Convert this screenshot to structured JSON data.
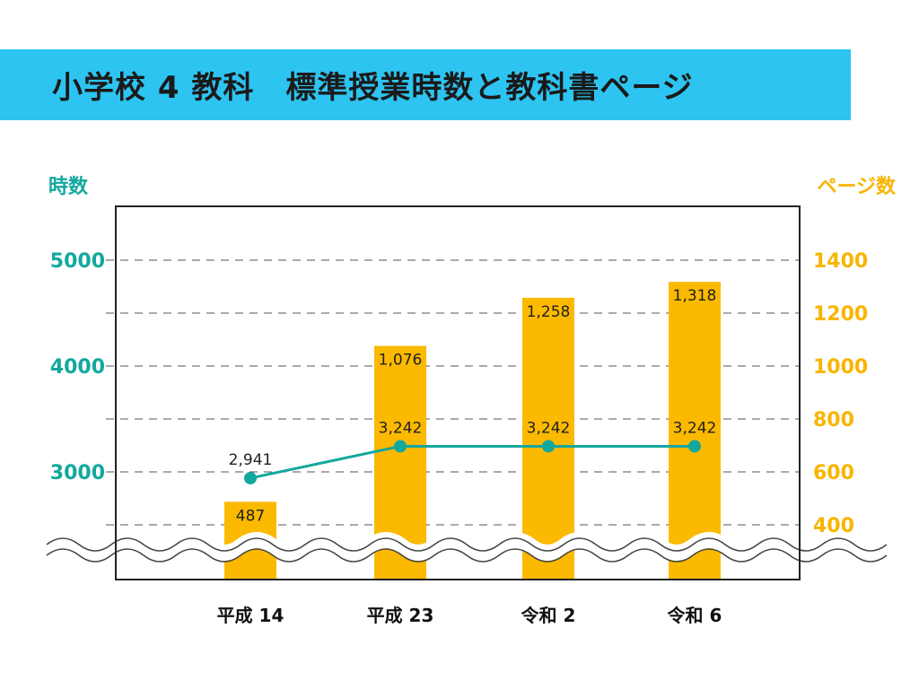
{
  "title": "小学校 4 教科　標準授業時数と教科書ページ",
  "left_axis_title": "時数",
  "right_axis_title": "ページ数",
  "colors": {
    "bar": "#fbb900",
    "line": "#13a89e",
    "title_bg": "#2ec4f1",
    "left_axis": "#13a89e",
    "right_axis": "#f8b500"
  },
  "chart_data": {
    "type": "bar+line",
    "categories": [
      "平成 14",
      "平成 23",
      "令和 2",
      "令和 6"
    ],
    "bars": {
      "name": "ページ数",
      "axis": "right",
      "values": [
        487,
        1076,
        1258,
        1318
      ],
      "labels": [
        "487",
        "1,076",
        "1,258",
        "1,318"
      ]
    },
    "line": {
      "name": "時数",
      "axis": "left",
      "values": [
        2941,
        3242,
        3242,
        3242
      ],
      "labels": [
        "2,941",
        "3,242",
        "3,242",
        "3,242"
      ]
    },
    "left_axis": {
      "title": "時数",
      "ticks": [
        3000,
        4000,
        5000
      ]
    },
    "right_axis": {
      "title": "ページ数",
      "ticks": [
        400,
        600,
        800,
        1000,
        1200,
        1400
      ]
    },
    "axis_break": true,
    "grid": "dashed"
  }
}
